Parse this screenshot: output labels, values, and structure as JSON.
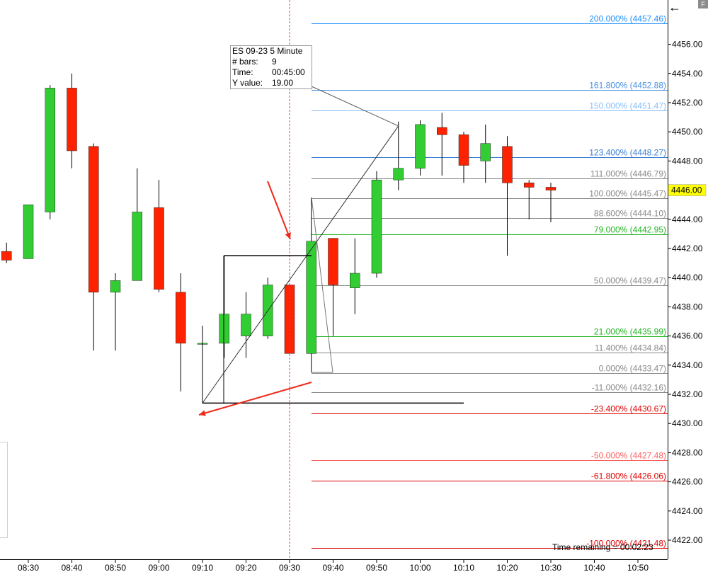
{
  "chart_data": {
    "type": "candlestick",
    "y_range": [
      4421.0,
      4458.0
    ],
    "y_ticks": [
      "4456.00",
      "4454.00",
      "4452.00",
      "4450.00",
      "4448.00",
      "4446.00",
      "4444.00",
      "4442.00",
      "4440.00",
      "4438.00",
      "4436.00",
      "4434.00",
      "4432.00",
      "4430.00",
      "4428.00",
      "4426.00",
      "4424.00",
      "4422.00"
    ],
    "x_ticks": [
      "08:30",
      "08:40",
      "08:50",
      "09:00",
      "09:10",
      "09:20",
      "09:30",
      "09:40",
      "09:50",
      "10:00",
      "10:10",
      "10:20",
      "10:30",
      "10:40",
      "10:50"
    ],
    "current_price": "4446.00",
    "up_color": "#32cd32",
    "down_color": "#ff2200",
    "bars": [
      {
        "t": "08:25",
        "o": 4441.8,
        "h": 4442.4,
        "l": 4441.0,
        "c": 4441.2
      },
      {
        "t": "08:30",
        "o": 4441.3,
        "h": 4445.0,
        "l": 4441.3,
        "c": 4445.0
      },
      {
        "t": "08:35",
        "o": 4444.5,
        "h": 4453.2,
        "l": 4444.0,
        "c": 4453.0
      },
      {
        "t": "08:40",
        "o": 4453.0,
        "h": 4454.0,
        "l": 4447.5,
        "c": 4448.7
      },
      {
        "t": "08:45",
        "o": 4449.0,
        "h": 4449.2,
        "l": 4435.0,
        "c": 4439.0
      },
      {
        "t": "08:50",
        "o": 4439.0,
        "h": 4440.3,
        "l": 4435.0,
        "c": 4439.8
      },
      {
        "t": "08:55",
        "o": 4439.8,
        "h": 4447.5,
        "l": 4439.8,
        "c": 4444.5
      },
      {
        "t": "09:00",
        "o": 4444.8,
        "h": 4446.7,
        "l": 4439.0,
        "c": 4439.2
      },
      {
        "t": "09:05",
        "o": 4439.0,
        "h": 4440.3,
        "l": 4432.2,
        "c": 4435.5
      },
      {
        "t": "09:10",
        "o": 4435.5,
        "h": 4436.7,
        "l": 4431.4,
        "c": 4435.5
      },
      {
        "t": "09:15",
        "o": 4435.5,
        "h": 4441.5,
        "l": 4434.5,
        "c": 4437.5
      },
      {
        "t": "09:20",
        "o": 4436.0,
        "h": 4439.0,
        "l": 4434.5,
        "c": 4437.5
      },
      {
        "t": "09:25",
        "o": 4436.0,
        "h": 4440.0,
        "l": 4435.8,
        "c": 4439.5
      },
      {
        "t": "09:30",
        "o": 4439.5,
        "h": 4439.5,
        "l": 4434.8,
        "c": 4434.8
      },
      {
        "t": "09:35",
        "o": 4434.8,
        "h": 4445.5,
        "l": 4433.5,
        "c": 4442.5
      },
      {
        "t": "09:40",
        "o": 4442.7,
        "h": 4442.7,
        "l": 4436.0,
        "c": 4439.5
      },
      {
        "t": "09:45",
        "o": 4439.3,
        "h": 4442.7,
        "l": 4437.5,
        "c": 4440.3
      },
      {
        "t": "09:50",
        "o": 4440.3,
        "h": 4447.3,
        "l": 4440.0,
        "c": 4446.7
      },
      {
        "t": "09:55",
        "o": 4446.7,
        "h": 4450.7,
        "l": 4446.0,
        "c": 4447.5
      },
      {
        "t": "10:00",
        "o": 4447.5,
        "h": 4450.8,
        "l": 4447.0,
        "c": 4450.5
      },
      {
        "t": "10:05",
        "o": 4450.3,
        "h": 4451.3,
        "l": 4447.0,
        "c": 4449.8
      },
      {
        "t": "10:10",
        "o": 4449.8,
        "h": 4450.0,
        "l": 4446.5,
        "c": 4447.7
      },
      {
        "t": "10:15",
        "o": 4448.0,
        "h": 4450.5,
        "l": 4446.5,
        "c": 4449.2
      },
      {
        "t": "10:20",
        "o": 4449.0,
        "h": 4449.7,
        "l": 4441.5,
        "c": 4446.5
      },
      {
        "t": "10:25",
        "o": 4446.5,
        "h": 4446.7,
        "l": 4444.0,
        "c": 4446.2
      },
      {
        "t": "10:30",
        "o": 4446.2,
        "h": 4446.5,
        "l": 4443.8,
        "c": 4446.0
      }
    ],
    "fib_levels": [
      {
        "label": "200.000% (4457.46)",
        "value": 4457.46,
        "color": "#1e90ff"
      },
      {
        "label": "161.800% (4452.88)",
        "value": 4452.88,
        "color": "#4a90e2"
      },
      {
        "label": "150.000% (4451.47)",
        "value": 4451.47,
        "color": "#87bfff"
      },
      {
        "label": "123.400% (4448.27)",
        "value": 4448.27,
        "color": "#3a7fd5"
      },
      {
        "label": "111.000% (4446.79)",
        "value": 4446.79,
        "color": "#888888"
      },
      {
        "label": "100.000% (4445.47)",
        "value": 4445.47,
        "color": "#888888"
      },
      {
        "label": "88.600% (4444.10)",
        "value": 4444.1,
        "color": "#888888"
      },
      {
        "label": "79.000% (4442.95)",
        "value": 4442.95,
        "color": "#22b422"
      },
      {
        "label": "50.000% (4439.47)",
        "value": 4439.47,
        "color": "#888888"
      },
      {
        "label": "21.000% (4435.99)",
        "value": 4435.99,
        "color": "#22b422"
      },
      {
        "label": "11.400% (4434.84)",
        "value": 4434.84,
        "color": "#888888"
      },
      {
        "label": "0.000% (4433.47)",
        "value": 4433.47,
        "color": "#888888"
      },
      {
        "label": "-11.000% (4432.16)",
        "value": 4432.16,
        "color": "#888888"
      },
      {
        "label": "-23.400% (4430.67)",
        "value": 4430.67,
        "color": "#e00000"
      },
      {
        "label": "-50.000% (4427.48)",
        "value": 4427.48,
        "color": "#ff6060"
      },
      {
        "label": "-61.800% (4426.06)",
        "value": 4426.06,
        "color": "#e00000"
      },
      {
        "label": "-100.000% (4421.48)",
        "value": 4421.48,
        "color": "#e00000"
      }
    ],
    "measure_tooltip": {
      "title": "ES 09-23 5 Minute",
      "bars_label": "# bars:",
      "bars_value": "9",
      "time_label": "Time:",
      "time_value": "00:45:00",
      "y_label": "Y value:",
      "y_value": "19.00"
    },
    "time_remaining": "Time remaining = 00:02:23",
    "measure_start": {
      "t": "09:10",
      "price": 4431.4
    },
    "measure_end": {
      "t": "09:55",
      "price": 4450.4
    },
    "vertical_marker_time": "09:30"
  }
}
